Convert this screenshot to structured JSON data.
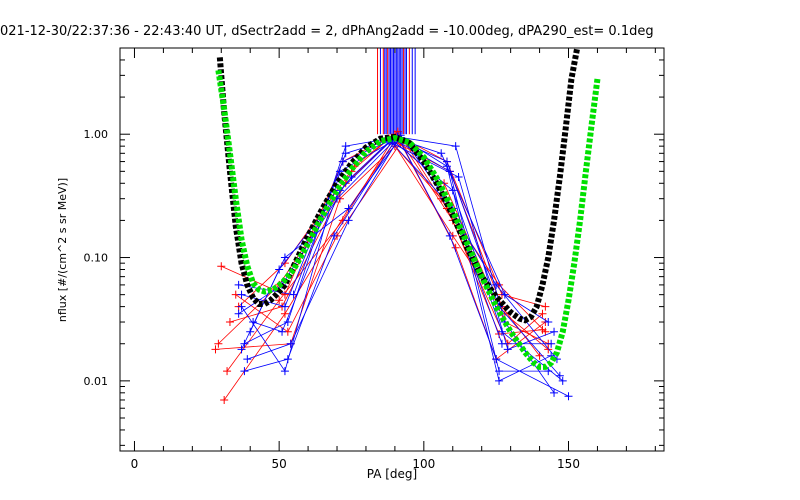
{
  "chart_data": {
    "type": "scatter",
    "title": "021-12-30/22:37:36 - 22:43:40 UT, dSectr2add = 2, dPhAng2add = -10.00deg, dPA290_est=    0.1deg",
    "xlabel": "PA [deg]",
    "ylabel": "nflux [#/(cm^2 s sr MeV)]",
    "xlim": [
      -5,
      183
    ],
    "ylim": [
      0.0027,
      5.0
    ],
    "yscale": "log",
    "grid": false,
    "x_ticks": [
      0,
      50,
      100,
      150
    ],
    "x_tick_labels": [
      "0",
      "50",
      "100",
      "150"
    ],
    "y_ticks": [
      0.01,
      0.1,
      1.0
    ],
    "y_tick_labels": [
      "0.01",
      "0.10",
      "1.00"
    ],
    "colors": {
      "red": "#ff0000",
      "blue": "#0000ff",
      "black": "#000000",
      "green": "#00e000"
    },
    "series": [
      {
        "color": "red",
        "style": "line+cross",
        "lines": [
          {
            "x": [
              30,
              52,
              72,
              90,
              108,
              127,
              142
            ],
            "y": [
              0.085,
              0.05,
              0.6,
              1.0,
              0.6,
              0.05,
              0.04
            ]
          },
          {
            "x": [
              31,
              52,
              74,
              91,
              110,
              126,
              141
            ],
            "y": [
              0.007,
              0.035,
              0.25,
              0.95,
              0.2,
              0.024,
              0.026
            ]
          },
          {
            "x": [
              29,
              50,
              73,
              89,
              107,
              128,
              143
            ],
            "y": [
              0.02,
              0.06,
              0.4,
              0.9,
              0.4,
              0.03,
              0.02
            ]
          },
          {
            "x": [
              35,
              53,
              70,
              92,
              111,
              125,
              142
            ],
            "y": [
              0.05,
              0.025,
              0.15,
              0.85,
              0.12,
              0.015,
              0.03
            ]
          },
          {
            "x": [
              33,
              51,
              75,
              88,
              109,
              127,
              140
            ],
            "y": [
              0.03,
              0.04,
              0.5,
              0.92,
              0.5,
              0.04,
              0.016
            ]
          },
          {
            "x": [
              28,
              54,
              71,
              90,
              106,
              126,
              142
            ],
            "y": [
              0.018,
              0.02,
              0.3,
              0.8,
              0.3,
              0.06,
              0.025
            ]
          },
          {
            "x": [
              36,
              52,
              76,
              91,
              108,
              129,
              141
            ],
            "y": [
              0.04,
              0.09,
              0.55,
              1.05,
              0.25,
              0.02,
              0.035
            ]
          },
          {
            "x": [
              32,
              50,
              72,
              89,
              110,
              128,
              143
            ],
            "y": [
              0.012,
              0.045,
              0.2,
              0.88,
              0.15,
              0.035,
              0.018
            ]
          }
        ]
      },
      {
        "color": "blue",
        "style": "line+cross",
        "lines": [
          {
            "x": [
              37,
              52,
              71,
              90,
              109,
              126,
              143
            ],
            "y": [
              0.04,
              0.012,
              0.5,
              0.9,
              0.5,
              0.012,
              0.012
            ]
          },
          {
            "x": [
              38,
              53,
              73,
              91,
              111,
              128,
              145
            ],
            "y": [
              0.02,
              0.03,
              0.8,
              0.95,
              0.8,
              0.03,
              0.008
            ]
          },
          {
            "x": [
              36,
              51,
              70,
              89,
              107,
              125,
              146
            ],
            "y": [
              0.035,
              0.06,
              0.3,
              0.85,
              0.3,
              0.06,
              0.015
            ]
          },
          {
            "x": [
              39,
              54,
              74,
              92,
              110,
              127,
              144
            ],
            "y": [
              0.015,
              0.02,
              0.2,
              0.98,
              0.25,
              0.02,
              0.02
            ]
          },
          {
            "x": [
              37,
              52,
              72,
              90,
              108,
              126,
              147
            ],
            "y": [
              0.05,
              0.04,
              0.6,
              0.92,
              0.6,
              0.04,
              0.011
            ]
          },
          {
            "x": [
              40,
              50,
              75,
              88,
              112,
              129,
              145
            ],
            "y": [
              0.025,
              0.08,
              0.45,
              0.87,
              0.45,
              0.018,
              0.025
            ]
          },
          {
            "x": [
              38,
              53,
              69,
              91,
              109,
              125,
              150
            ],
            "y": [
              0.012,
              0.015,
              0.15,
              0.96,
              0.15,
              0.015,
              0.0075
            ]
          },
          {
            "x": [
              36,
              55,
              73,
              90,
              106,
              128,
              143
            ],
            "y": [
              0.06,
              0.05,
              0.7,
              0.93,
              0.7,
              0.05,
              0.03
            ]
          },
          {
            "x": [
              41,
              51,
              71,
              89,
              110,
              127,
              148
            ],
            "y": [
              0.03,
              0.025,
              0.35,
              0.9,
              0.35,
              0.025,
              0.01
            ]
          },
          {
            "x": [
              37,
              52,
              74,
              92,
              108,
              126,
              144
            ],
            "y": [
              0.018,
              0.1,
              0.25,
              0.94,
              0.55,
              0.01,
              0.016
            ]
          }
        ]
      },
      {
        "color": "black",
        "style": "thick-dashed",
        "x": [
          29.5,
          31,
          33,
          35,
          37,
          39,
          41,
          43,
          45,
          47,
          49,
          52,
          55,
          60,
          65,
          70,
          75,
          80,
          85,
          90,
          95,
          100,
          105,
          110,
          115,
          120,
          125,
          130,
          133,
          135,
          137,
          139,
          141,
          143,
          145,
          147,
          149,
          151,
          153
        ],
        "y": [
          4.2,
          1.5,
          0.5,
          0.18,
          0.09,
          0.06,
          0.047,
          0.042,
          0.042,
          0.045,
          0.05,
          0.06,
          0.085,
          0.15,
          0.25,
          0.4,
          0.58,
          0.78,
          0.92,
          0.95,
          0.85,
          0.6,
          0.38,
          0.22,
          0.12,
          0.07,
          0.048,
          0.036,
          0.032,
          0.031,
          0.033,
          0.04,
          0.06,
          0.1,
          0.2,
          0.45,
          1.1,
          2.8,
          5.0
        ]
      },
      {
        "color": "green",
        "style": "thick-dashed",
        "x": [
          29,
          31,
          33,
          35,
          37,
          39,
          41,
          43,
          45,
          48,
          51,
          55,
          60,
          65,
          70,
          75,
          80,
          85,
          90,
          95,
          100,
          105,
          110,
          115,
          120,
          125,
          130,
          135,
          138,
          140,
          142,
          144,
          146,
          148,
          150,
          152,
          154,
          156,
          158,
          160
        ],
        "y": [
          3.3,
          1.6,
          0.7,
          0.3,
          0.14,
          0.085,
          0.062,
          0.055,
          0.053,
          0.055,
          0.062,
          0.08,
          0.13,
          0.22,
          0.35,
          0.52,
          0.72,
          0.88,
          0.93,
          0.86,
          0.65,
          0.42,
          0.24,
          0.13,
          0.07,
          0.04,
          0.025,
          0.017,
          0.014,
          0.013,
          0.013,
          0.014,
          0.017,
          0.025,
          0.045,
          0.09,
          0.2,
          0.5,
          1.2,
          2.8
        ]
      },
      {
        "color": "mixed",
        "style": "vertical-lines",
        "x": [
          84,
          85,
          86,
          86.5,
          87,
          87.5,
          88,
          88.5,
          89,
          89.5,
          90,
          90.5,
          91,
          91.5,
          92,
          92.5,
          93,
          93.5,
          94,
          95,
          96,
          97
        ],
        "colors": [
          "red",
          "blue",
          "red",
          "blue",
          "blue",
          "red",
          "blue",
          "blue",
          "blue",
          "blue",
          "blue",
          "blue",
          "blue",
          "blue",
          "blue",
          "blue",
          "red",
          "blue",
          "blue",
          "red",
          "blue",
          "blue"
        ],
        "y_from": 1.0,
        "y_to": 5.0
      }
    ]
  }
}
